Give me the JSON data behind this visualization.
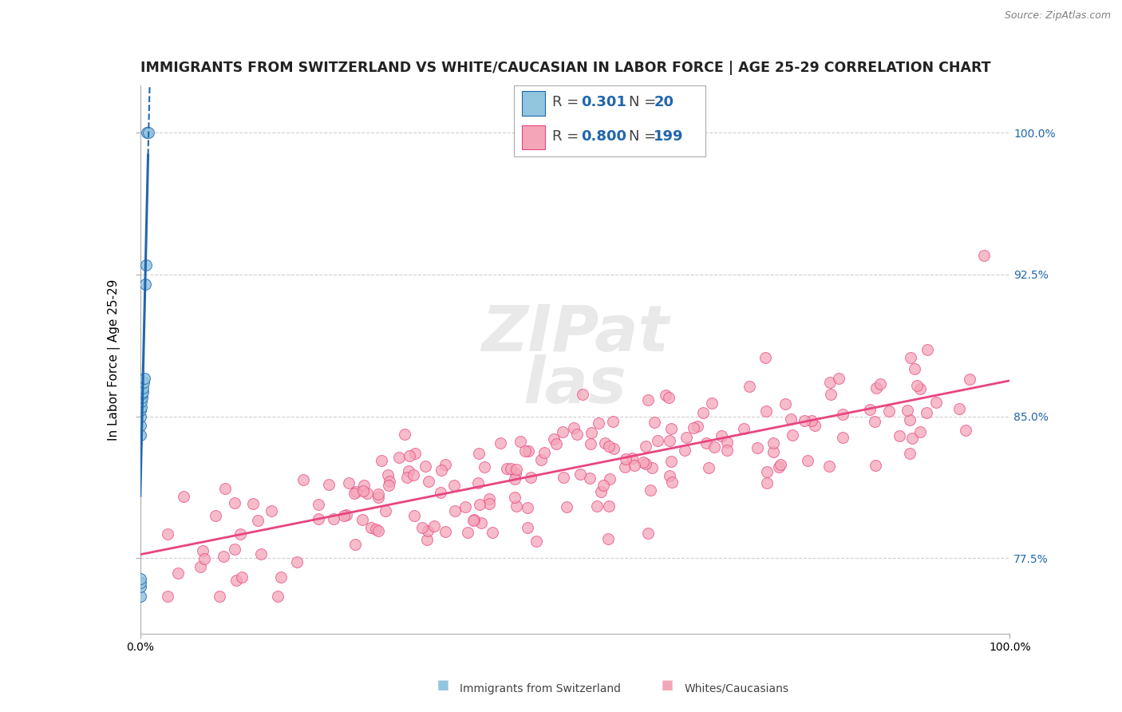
{
  "title": "IMMIGRANTS FROM SWITZERLAND VS WHITE/CAUCASIAN IN LABOR FORCE | AGE 25-29 CORRELATION CHART",
  "source": "Source: ZipAtlas.com",
  "ylabel": "In Labor Force | Age 25-29",
  "legend_label1": "Immigrants from Switzerland",
  "legend_label2": "Whites/Caucasians",
  "r1": "0.301",
  "n1": "20",
  "r2": "0.800",
  "n2": "199",
  "color_blue": "#92c5de",
  "color_pink": "#f4a6b8",
  "color_blue_line": "#2166ac",
  "color_pink_line": "#e84580",
  "xlim": [
    0.0,
    1.0
  ],
  "ylim": [
    0.735,
    1.025
  ],
  "yticks": [
    0.775,
    0.85,
    0.925,
    1.0
  ],
  "ytick_labels": [
    "77.5%",
    "85.0%",
    "92.5%",
    "100.0%"
  ],
  "xtick_labels": [
    "0.0%",
    "100.0%"
  ],
  "background_color": "#ffffff",
  "grid_color": "#d0d0d0",
  "title_color": "#222222",
  "watermark": "ZIPAtlas",
  "title_fontsize": 12.5,
  "axis_label_fontsize": 11,
  "tick_fontsize": 10,
  "legend_fontsize": 13,
  "blue_x": [
    0.0,
    0.0,
    0.0,
    0.0,
    0.0,
    0.0,
    0.0,
    0.0,
    0.001,
    0.001,
    0.002,
    0.002,
    0.003,
    0.003,
    0.004,
    0.005,
    0.006,
    0.007,
    0.008,
    0.009
  ],
  "blue_y": [
    0.755,
    0.76,
    0.762,
    0.764,
    0.84,
    0.845,
    0.85,
    0.853,
    0.855,
    0.858,
    0.86,
    0.862,
    0.863,
    0.865,
    0.868,
    0.87,
    0.92,
    0.93,
    1.0,
    1.0
  ]
}
